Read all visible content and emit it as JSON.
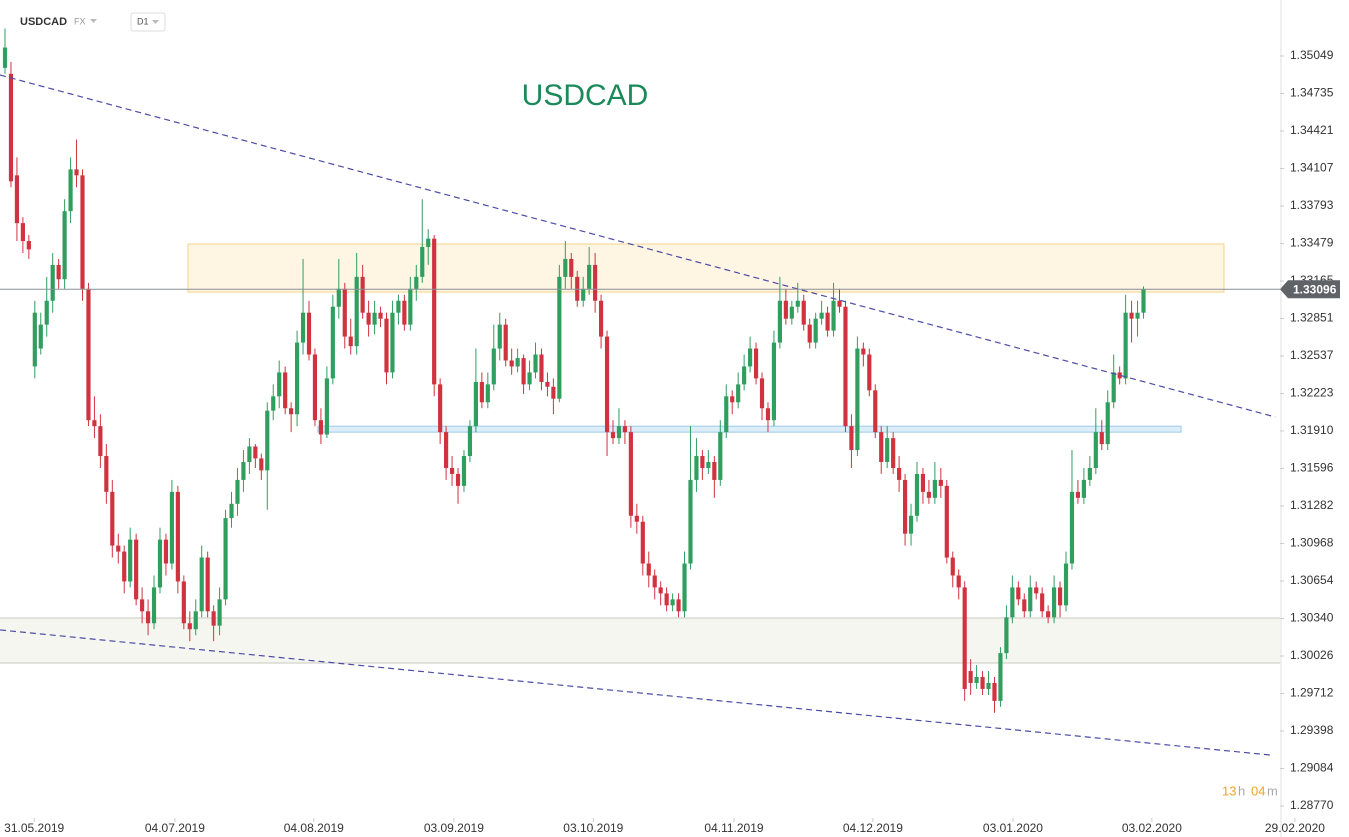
{
  "chart_data": {
    "type": "candlestick",
    "symbol": "USDCAD",
    "market": "FX",
    "interval": "D1",
    "title": "USDCAD",
    "up_color": "#2f9e5f",
    "down_color": "#d0323f",
    "grid": false,
    "xlim": [
      -0.84,
      213.9
    ],
    "ylim": [
      1.28636,
      1.35518
    ],
    "xticks": [
      {
        "value": 4.9,
        "label": "31.05.2019"
      },
      {
        "value": 28.5,
        "label": "04.07.2019"
      },
      {
        "value": 51.8,
        "label": "04.08.2019"
      },
      {
        "value": 75.3,
        "label": "03.09.2019"
      },
      {
        "value": 98.7,
        "label": "03.10.2019"
      },
      {
        "value": 122.3,
        "label": "04.11.2019"
      },
      {
        "value": 145.6,
        "label": "04.12.2019"
      },
      {
        "value": 169.1,
        "label": "03.01.2020"
      },
      {
        "value": 192.4,
        "label": "03.02.2020"
      },
      {
        "value": 216.4,
        "label": "29.02.2020"
      }
    ],
    "yticks": [
      1.35049,
      1.34735,
      1.34421,
      1.34107,
      1.33793,
      1.33479,
      1.33165,
      1.32851,
      1.32537,
      1.32223,
      {
        "value": 1.3191,
        "label": "1.31910"
      },
      1.31596,
      1.31282,
      1.30968,
      1.30654,
      {
        "value": 1.3034,
        "label": "1.30340"
      },
      1.30026,
      1.29712,
      1.29398,
      1.29084,
      {
        "value": 1.2877,
        "label": "1.28770"
      }
    ],
    "last_price": 1.33096,
    "countdown": [
      "13",
      "h",
      "04",
      "m"
    ],
    "resistance_zone": {
      "x": [
        30.7,
        204.5
      ],
      "y": [
        1.33073,
        1.33475
      ],
      "color": "#fff4e0"
    },
    "support_zone": {
      "y": [
        1.29967,
        1.30344
      ],
      "color": "#f6f6f1"
    },
    "level_band": {
      "x": [
        52.5,
        197.3
      ],
      "y": [
        1.319,
        1.3195
      ],
      "color": "#dceefa"
    },
    "trendlines": [
      {
        "x": [
          -0.84,
          213.1
        ],
        "y": [
          1.3489,
          1.32027
        ],
        "color": "#4c4ca6"
      },
      {
        "x": [
          -0.84,
          212.2
        ],
        "y": [
          1.30244,
          1.29197
        ],
        "color": "#4c4ca6"
      }
    ],
    "ohlc": [
      [
        1.3495,
        1.3528,
        1.349,
        1.3512
      ],
      [
        1.349,
        1.35,
        1.3395,
        1.34
      ],
      [
        1.3405,
        1.342,
        1.335,
        1.3365
      ],
      [
        1.3365,
        1.337,
        1.334,
        1.335
      ],
      [
        1.335,
        1.3355,
        1.3335,
        1.3343
      ],
      [
        1.3245,
        1.33,
        1.3235,
        1.329
      ],
      [
        1.326,
        1.329,
        1.3255,
        1.328
      ],
      [
        1.328,
        1.332,
        1.327,
        1.33
      ],
      [
        1.33,
        1.334,
        1.329,
        1.333
      ],
      [
        1.333,
        1.3335,
        1.331,
        1.3318
      ],
      [
        1.3318,
        1.3385,
        1.331,
        1.3375
      ],
      [
        1.3375,
        1.342,
        1.3365,
        1.341
      ],
      [
        1.341,
        1.3435,
        1.3395,
        1.3405
      ],
      [
        1.3405,
        1.341,
        1.33,
        1.331
      ],
      [
        1.331,
        1.3315,
        1.3195,
        1.32
      ],
      [
        1.32,
        1.322,
        1.3185,
        1.3195
      ],
      [
        1.3195,
        1.3205,
        1.316,
        1.317
      ],
      [
        1.317,
        1.318,
        1.313,
        1.314
      ],
      [
        1.314,
        1.315,
        1.3085,
        1.3095
      ],
      [
        1.3095,
        1.3105,
        1.308,
        1.309
      ],
      [
        1.309,
        1.3095,
        1.3055,
        1.3065
      ],
      [
        1.3065,
        1.311,
        1.306,
        1.31
      ],
      [
        1.31,
        1.3105,
        1.3045,
        1.305
      ],
      [
        1.305,
        1.306,
        1.303,
        1.304
      ],
      [
        1.304,
        1.305,
        1.302,
        1.303
      ],
      [
        1.303,
        1.307,
        1.3025,
        1.306
      ],
      [
        1.306,
        1.311,
        1.3055,
        1.31
      ],
      [
        1.31,
        1.3105,
        1.307,
        1.308
      ],
      [
        1.308,
        1.315,
        1.3075,
        1.314
      ],
      [
        1.314,
        1.3145,
        1.3055,
        1.3065
      ],
      [
        1.3065,
        1.307,
        1.3025,
        1.303
      ],
      [
        1.303,
        1.304,
        1.3015,
        1.3025
      ],
      [
        1.3025,
        1.305,
        1.302,
        1.304
      ],
      [
        1.304,
        1.3095,
        1.3035,
        1.3085
      ],
      [
        1.3085,
        1.309,
        1.3035,
        1.304
      ],
      [
        1.304,
        1.3045,
        1.3015,
        1.3028
      ],
      [
        1.3028,
        1.306,
        1.302,
        1.305
      ],
      [
        1.305,
        1.3125,
        1.3045,
        1.3118
      ],
      [
        1.3118,
        1.314,
        1.311,
        1.313
      ],
      [
        1.313,
        1.316,
        1.312,
        1.315
      ],
      [
        1.315,
        1.3175,
        1.314,
        1.3165
      ],
      [
        1.3165,
        1.3185,
        1.3155,
        1.3178
      ],
      [
        1.3178,
        1.318,
        1.316,
        1.3168
      ],
      [
        1.3168,
        1.3172,
        1.315,
        1.3158
      ],
      [
        1.3158,
        1.3215,
        1.3125,
        1.3208
      ],
      [
        1.3208,
        1.323,
        1.32,
        1.322
      ],
      [
        1.322,
        1.325,
        1.321,
        1.324
      ],
      [
        1.324,
        1.3245,
        1.3205,
        1.321
      ],
      [
        1.321,
        1.3215,
        1.319,
        1.3205
      ],
      [
        1.3205,
        1.3275,
        1.3195,
        1.3265
      ],
      [
        1.3265,
        1.3335,
        1.3255,
        1.329
      ],
      [
        1.329,
        1.33,
        1.325,
        1.3255
      ],
      [
        1.3255,
        1.326,
        1.3195,
        1.32
      ],
      [
        1.32,
        1.321,
        1.318,
        1.3188
      ],
      [
        1.3188,
        1.3245,
        1.3185,
        1.3235
      ],
      [
        1.3235,
        1.3305,
        1.323,
        1.3295
      ],
      [
        1.3295,
        1.3335,
        1.3285,
        1.331
      ],
      [
        1.331,
        1.3315,
        1.326,
        1.327
      ],
      [
        1.327,
        1.3285,
        1.3255,
        1.3262
      ],
      [
        1.3262,
        1.334,
        1.3255,
        1.332
      ],
      [
        1.332,
        1.333,
        1.3285,
        1.329
      ],
      [
        1.329,
        1.33,
        1.327,
        1.328
      ],
      [
        1.328,
        1.33,
        1.3272,
        1.329
      ],
      [
        1.329,
        1.3295,
        1.3278,
        1.3285
      ],
      [
        1.3285,
        1.329,
        1.323,
        1.324
      ],
      [
        1.324,
        1.33,
        1.3235,
        1.329
      ],
      [
        1.329,
        1.3305,
        1.328,
        1.33
      ],
      [
        1.33,
        1.3305,
        1.3275,
        1.328
      ],
      [
        1.328,
        1.332,
        1.3275,
        1.331
      ],
      [
        1.331,
        1.333,
        1.33,
        1.332
      ],
      [
        1.332,
        1.3385,
        1.3315,
        1.3345
      ],
      [
        1.3345,
        1.336,
        1.333,
        1.3352
      ],
      [
        1.3352,
        1.3355,
        1.322,
        1.323
      ],
      [
        1.323,
        1.3235,
        1.318,
        1.319
      ],
      [
        1.319,
        1.3195,
        1.315,
        1.316
      ],
      [
        1.316,
        1.317,
        1.3145,
        1.3155
      ],
      [
        1.3155,
        1.316,
        1.313,
        1.3145
      ],
      [
        1.3145,
        1.3175,
        1.314,
        1.317
      ],
      [
        1.317,
        1.32,
        1.3165,
        1.3195
      ],
      [
        1.3195,
        1.326,
        1.319,
        1.3232
      ],
      [
        1.3232,
        1.324,
        1.321,
        1.3215
      ],
      [
        1.3215,
        1.324,
        1.321,
        1.323
      ],
      [
        1.323,
        1.328,
        1.3225,
        1.326
      ],
      [
        1.326,
        1.329,
        1.325,
        1.328
      ],
      [
        1.328,
        1.3285,
        1.3245,
        1.325
      ],
      [
        1.325,
        1.326,
        1.3238,
        1.3245
      ],
      [
        1.3245,
        1.326,
        1.324,
        1.3252
      ],
      [
        1.3252,
        1.3255,
        1.3222,
        1.323
      ],
      [
        1.323,
        1.325,
        1.3225,
        1.324
      ],
      [
        1.324,
        1.3265,
        1.3235,
        1.3255
      ],
      [
        1.3255,
        1.326,
        1.3225,
        1.3232
      ],
      [
        1.3232,
        1.324,
        1.322,
        1.3228
      ],
      [
        1.3228,
        1.3235,
        1.3205,
        1.3218
      ],
      [
        1.3218,
        1.333,
        1.3215,
        1.332
      ],
      [
        1.332,
        1.335,
        1.331,
        1.3335
      ],
      [
        1.3335,
        1.334,
        1.331,
        1.332
      ],
      [
        1.332,
        1.3325,
        1.3295,
        1.33
      ],
      [
        1.33,
        1.332,
        1.3295,
        1.331
      ],
      [
        1.331,
        1.3345,
        1.3305,
        1.333
      ],
      [
        1.333,
        1.334,
        1.329,
        1.33
      ],
      [
        1.33,
        1.3305,
        1.326,
        1.327
      ],
      [
        1.327,
        1.3275,
        1.317,
        1.319
      ],
      [
        1.319,
        1.32,
        1.318,
        1.3185
      ],
      [
        1.3185,
        1.321,
        1.318,
        1.3195
      ],
      [
        1.3195,
        1.32,
        1.318,
        1.319
      ],
      [
        1.319,
        1.3195,
        1.311,
        1.312
      ],
      [
        1.312,
        1.313,
        1.3105,
        1.3115
      ],
      [
        1.3115,
        1.312,
        1.307,
        1.308
      ],
      [
        1.308,
        1.309,
        1.306,
        1.307
      ],
      [
        1.307,
        1.3075,
        1.305,
        1.306
      ],
      [
        1.306,
        1.3065,
        1.3045,
        1.3055
      ],
      [
        1.3055,
        1.306,
        1.304,
        1.3045
      ],
      [
        1.3045,
        1.3055,
        1.304,
        1.305
      ],
      [
        1.305,
        1.3055,
        1.3035,
        1.304
      ],
      [
        1.304,
        1.309,
        1.3035,
        1.308
      ],
      [
        1.308,
        1.3195,
        1.3075,
        1.315
      ],
      [
        1.315,
        1.3185,
        1.314,
        1.317
      ],
      [
        1.317,
        1.3175,
        1.315,
        1.316
      ],
      [
        1.316,
        1.3175,
        1.3155,
        1.3165
      ],
      [
        1.3165,
        1.317,
        1.3135,
        1.315
      ],
      [
        1.315,
        1.32,
        1.3145,
        1.319
      ],
      [
        1.319,
        1.323,
        1.3185,
        1.322
      ],
      [
        1.322,
        1.3225,
        1.3205,
        1.3215
      ],
      [
        1.3215,
        1.324,
        1.321,
        1.323
      ],
      [
        1.323,
        1.3255,
        1.3225,
        1.3245
      ],
      [
        1.3245,
        1.327,
        1.324,
        1.326
      ],
      [
        1.326,
        1.3265,
        1.323,
        1.3235
      ],
      [
        1.3235,
        1.324,
        1.32,
        1.321
      ],
      [
        1.321,
        1.3215,
        1.319,
        1.32
      ],
      [
        1.32,
        1.3275,
        1.3195,
        1.3265
      ],
      [
        1.3265,
        1.332,
        1.326,
        1.33
      ],
      [
        1.33,
        1.331,
        1.328,
        1.3285
      ],
      [
        1.3285,
        1.33,
        1.328,
        1.3295
      ],
      [
        1.3295,
        1.3315,
        1.329,
        1.33
      ],
      [
        1.33,
        1.3305,
        1.3275,
        1.328
      ],
      [
        1.328,
        1.3285,
        1.326,
        1.3265
      ],
      [
        1.3265,
        1.329,
        1.326,
        1.3285
      ],
      [
        1.3285,
        1.33,
        1.328,
        1.329
      ],
      [
        1.329,
        1.3295,
        1.327,
        1.3275
      ],
      [
        1.3275,
        1.3315,
        1.327,
        1.33
      ],
      [
        1.33,
        1.331,
        1.329,
        1.3295
      ],
      [
        1.3295,
        1.33,
        1.319,
        1.3195
      ],
      [
        1.3195,
        1.3205,
        1.316,
        1.3175
      ],
      [
        1.3175,
        1.327,
        1.317,
        1.326
      ],
      [
        1.326,
        1.3265,
        1.3245,
        1.3255
      ],
      [
        1.3255,
        1.326,
        1.322,
        1.3225
      ],
      [
        1.3225,
        1.323,
        1.3185,
        1.319
      ],
      [
        1.319,
        1.3195,
        1.3155,
        1.3165
      ],
      [
        1.3165,
        1.3195,
        1.316,
        1.3185
      ],
      [
        1.3185,
        1.319,
        1.3155,
        1.316
      ],
      [
        1.316,
        1.317,
        1.314,
        1.315
      ],
      [
        1.315,
        1.3155,
        1.3095,
        1.3105
      ],
      [
        1.3105,
        1.313,
        1.3095,
        1.312
      ],
      [
        1.312,
        1.3165,
        1.3115,
        1.3155
      ],
      [
        1.3155,
        1.316,
        1.313,
        1.314
      ],
      [
        1.314,
        1.315,
        1.313,
        1.3135
      ],
      [
        1.3135,
        1.3165,
        1.313,
        1.315
      ],
      [
        1.315,
        1.316,
        1.3135,
        1.3145
      ],
      [
        1.3145,
        1.315,
        1.308,
        1.3085
      ],
      [
        1.3085,
        1.309,
        1.306,
        1.307
      ],
      [
        1.307,
        1.3075,
        1.305,
        1.306
      ],
      [
        1.306,
        1.3065,
        1.2965,
        1.2975
      ],
      [
        1.299,
        1.3,
        1.297,
        1.298
      ],
      [
        1.298,
        1.2995,
        1.2975,
        1.2985
      ],
      [
        1.2985,
        1.299,
        1.297,
        1.2975
      ],
      [
        1.2975,
        1.299,
        1.297,
        1.298
      ],
      [
        1.298,
        1.2985,
        1.2955,
        1.2965
      ],
      [
        1.2965,
        1.301,
        1.296,
        1.3005
      ],
      [
        1.3005,
        1.3045,
        1.3,
        1.3035
      ],
      [
        1.3035,
        1.307,
        1.303,
        1.306
      ],
      [
        1.306,
        1.3065,
        1.3045,
        1.305
      ],
      [
        1.305,
        1.3055,
        1.3035,
        1.304
      ],
      [
        1.304,
        1.307,
        1.3035,
        1.306
      ],
      [
        1.306,
        1.3065,
        1.305,
        1.3055
      ],
      [
        1.3055,
        1.306,
        1.3035,
        1.304
      ],
      [
        1.304,
        1.3045,
        1.303,
        1.3035
      ],
      [
        1.3035,
        1.307,
        1.303,
        1.306
      ],
      [
        1.306,
        1.3065,
        1.3035,
        1.3045
      ],
      [
        1.3045,
        1.309,
        1.304,
        1.308
      ],
      [
        1.308,
        1.3175,
        1.3075,
        1.314
      ],
      [
        1.314,
        1.315,
        1.313,
        1.3135
      ],
      [
        1.3135,
        1.316,
        1.313,
        1.315
      ],
      [
        1.315,
        1.317,
        1.3145,
        1.316
      ],
      [
        1.316,
        1.321,
        1.3155,
        1.319
      ],
      [
        1.319,
        1.32,
        1.3175,
        1.318
      ],
      [
        1.318,
        1.3225,
        1.3175,
        1.3215
      ],
      [
        1.3215,
        1.3255,
        1.321,
        1.324
      ],
      [
        1.324,
        1.3245,
        1.323,
        1.3235
      ],
      [
        1.3235,
        1.3305,
        1.323,
        1.329
      ],
      [
        1.329,
        1.33,
        1.3265,
        1.3285
      ],
      [
        1.3285,
        1.33,
        1.327,
        1.329
      ],
      [
        1.329,
        1.3312,
        1.3285,
        1.33096
      ]
    ]
  }
}
